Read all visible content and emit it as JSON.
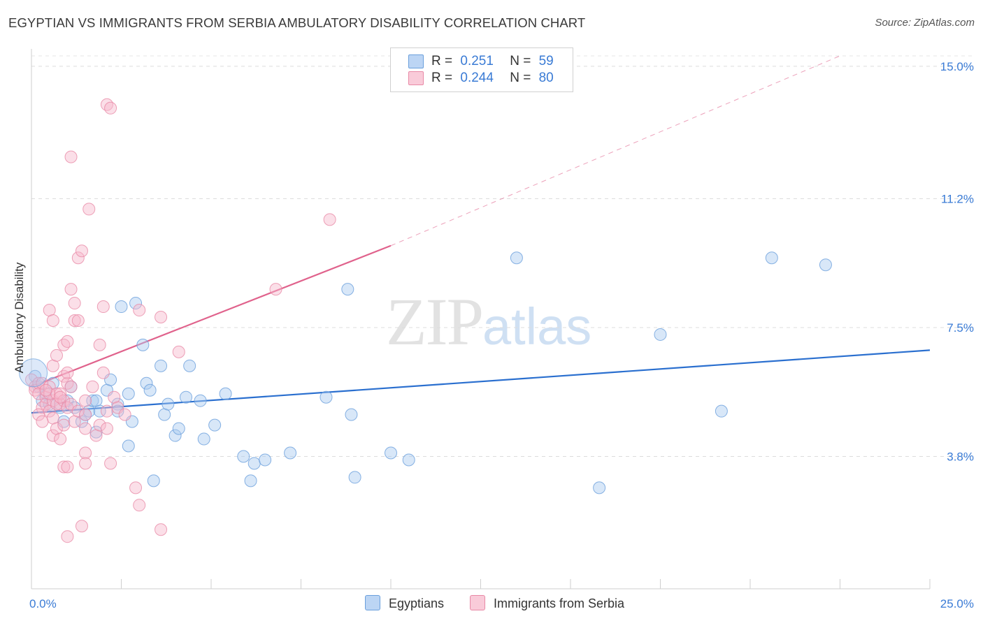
{
  "header": {
    "title": "EGYPTIAN VS IMMIGRANTS FROM SERBIA AMBULATORY DISABILITY CORRELATION CHART",
    "source": "Source: ZipAtlas.com"
  },
  "watermark": {
    "zip": "ZIP",
    "atlas": "atlas"
  },
  "legend_top": {
    "rows": [
      {
        "r_label": "R =",
        "r_value": "0.251",
        "n_label": "N =",
        "n_value": "59"
      },
      {
        "r_label": "R =",
        "r_value": "0.244",
        "n_label": "N =",
        "n_value": "80"
      }
    ]
  },
  "legend_bottom": {
    "series1": "Egyptians",
    "series2": "Immigrants from Serbia"
  },
  "colors": {
    "blue_fill": "#a9c9f0",
    "blue_stroke": "#6a9fdc",
    "blue_line": "#2a6fcf",
    "pink_fill": "#f6b8cb",
    "pink_stroke": "#e889a6",
    "pink_line": "#e0628c",
    "tick_label": "#3a7bd5"
  },
  "chart_data": {
    "type": "scatter",
    "title": "EGYPTIAN VS IMMIGRANTS FROM SERBIA AMBULATORY DISABILITY CORRELATION CHART",
    "xlabel": "",
    "ylabel": "Ambulatory Disability",
    "xlim": [
      0,
      25
    ],
    "ylim": [
      0,
      15.5
    ],
    "x_tick_labels": [
      "0.0%",
      "25.0%"
    ],
    "y_ticks": [
      3.8,
      7.5,
      11.2,
      15.0
    ],
    "y_tick_labels": [
      "3.8%",
      "7.5%",
      "11.2%",
      "15.0%"
    ],
    "grid": true,
    "legend": "top-center",
    "series": [
      {
        "name": "Egyptians",
        "r": 0.251,
        "n": 59,
        "trend": {
          "x0": 0,
          "y0": 5.05,
          "x1": 25,
          "y1": 6.85
        },
        "points": [
          [
            0.1,
            6.1
          ],
          [
            0.3,
            5.4
          ],
          [
            0.4,
            5.6
          ],
          [
            0.5,
            5.3
          ],
          [
            0.6,
            5.9
          ],
          [
            0.8,
            5.2
          ],
          [
            1.0,
            5.4
          ],
          [
            0.9,
            4.8
          ],
          [
            1.1,
            5.8
          ],
          [
            1.2,
            5.2
          ],
          [
            1.4,
            4.8
          ],
          [
            1.5,
            5.0
          ],
          [
            1.6,
            5.1
          ],
          [
            1.7,
            5.4
          ],
          [
            1.8,
            5.4
          ],
          [
            1.8,
            4.5
          ],
          [
            1.9,
            5.1
          ],
          [
            2.1,
            5.7
          ],
          [
            2.2,
            6.0
          ],
          [
            2.4,
            5.3
          ],
          [
            2.4,
            5.1
          ],
          [
            2.5,
            8.1
          ],
          [
            2.7,
            5.6
          ],
          [
            2.7,
            4.1
          ],
          [
            2.8,
            4.8
          ],
          [
            2.9,
            8.2
          ],
          [
            3.1,
            7.0
          ],
          [
            3.2,
            5.9
          ],
          [
            3.3,
            5.7
          ],
          [
            3.4,
            3.1
          ],
          [
            3.6,
            6.4
          ],
          [
            3.7,
            5.0
          ],
          [
            3.8,
            5.3
          ],
          [
            4.0,
            4.4
          ],
          [
            4.1,
            4.6
          ],
          [
            4.3,
            5.5
          ],
          [
            4.4,
            6.4
          ],
          [
            4.7,
            5.4
          ],
          [
            4.8,
            4.3
          ],
          [
            5.1,
            4.7
          ],
          [
            5.4,
            5.6
          ],
          [
            5.9,
            3.8
          ],
          [
            6.1,
            3.1
          ],
          [
            6.2,
            3.6
          ],
          [
            6.5,
            3.7
          ],
          [
            7.2,
            3.9
          ],
          [
            8.2,
            5.5
          ],
          [
            8.8,
            8.6
          ],
          [
            8.9,
            5.0
          ],
          [
            9.0,
            3.2
          ],
          [
            10.0,
            3.9
          ],
          [
            10.5,
            3.7
          ],
          [
            13.5,
            9.5
          ],
          [
            15.8,
            2.9
          ],
          [
            17.5,
            7.3
          ],
          [
            19.2,
            5.1
          ],
          [
            20.6,
            9.5
          ],
          [
            22.1,
            9.3
          ],
          [
            0.2,
            5.8
          ]
        ]
      },
      {
        "name": "Immigrants from Serbia",
        "r": 0.244,
        "n": 80,
        "trend": {
          "x0": 0,
          "y0": 5.8,
          "x1": 10.0,
          "y1": 9.85,
          "dash_to_x": 22.5,
          "dash_to_y": 15.3
        },
        "points": [
          [
            0.0,
            6.0
          ],
          [
            0.1,
            5.8
          ],
          [
            0.1,
            5.7
          ],
          [
            0.2,
            5.9
          ],
          [
            0.2,
            5.6
          ],
          [
            0.3,
            5.9
          ],
          [
            0.3,
            5.2
          ],
          [
            0.2,
            5.0
          ],
          [
            0.4,
            5.5
          ],
          [
            0.4,
            5.3
          ],
          [
            0.5,
            5.8
          ],
          [
            0.5,
            5.1
          ],
          [
            0.6,
            5.4
          ],
          [
            0.5,
            5.6
          ],
          [
            0.6,
            4.9
          ],
          [
            0.7,
            5.6
          ],
          [
            0.6,
            4.4
          ],
          [
            0.5,
            8.0
          ],
          [
            0.6,
            7.7
          ],
          [
            0.6,
            6.4
          ],
          [
            0.7,
            6.7
          ],
          [
            0.7,
            4.6
          ],
          [
            0.8,
            5.3
          ],
          [
            0.8,
            5.6
          ],
          [
            0.7,
            5.3
          ],
          [
            0.8,
            4.3
          ],
          [
            0.9,
            5.4
          ],
          [
            0.9,
            6.1
          ],
          [
            0.9,
            7.0
          ],
          [
            0.9,
            4.7
          ],
          [
            0.9,
            3.5
          ],
          [
            1.0,
            5.2
          ],
          [
            1.0,
            5.9
          ],
          [
            1.0,
            7.1
          ],
          [
            1.0,
            6.2
          ],
          [
            1.0,
            3.5
          ],
          [
            1.0,
            1.5
          ],
          [
            1.1,
            5.8
          ],
          [
            1.1,
            8.6
          ],
          [
            1.1,
            5.3
          ],
          [
            1.2,
            8.2
          ],
          [
            1.2,
            7.7
          ],
          [
            1.1,
            12.4
          ],
          [
            1.2,
            4.8
          ],
          [
            1.3,
            7.7
          ],
          [
            1.3,
            5.1
          ],
          [
            1.3,
            9.5
          ],
          [
            1.4,
            9.7
          ],
          [
            1.4,
            1.8
          ],
          [
            1.5,
            5.4
          ],
          [
            1.5,
            5.0
          ],
          [
            1.5,
            4.6
          ],
          [
            1.5,
            3.9
          ],
          [
            1.5,
            3.6
          ],
          [
            1.6,
            10.9
          ],
          [
            1.7,
            5.8
          ],
          [
            1.8,
            4.4
          ],
          [
            1.9,
            4.7
          ],
          [
            1.9,
            7.0
          ],
          [
            2.0,
            8.1
          ],
          [
            2.0,
            6.2
          ],
          [
            2.1,
            4.6
          ],
          [
            2.1,
            5.1
          ],
          [
            2.1,
            13.9
          ],
          [
            2.2,
            13.8
          ],
          [
            2.2,
            3.6
          ],
          [
            2.3,
            5.5
          ],
          [
            2.4,
            5.2
          ],
          [
            2.6,
            5.0
          ],
          [
            2.9,
            2.9
          ],
          [
            3.0,
            2.4
          ],
          [
            3.0,
            8.0
          ],
          [
            3.6,
            1.7
          ],
          [
            3.6,
            7.8
          ],
          [
            4.1,
            6.8
          ],
          [
            6.8,
            8.6
          ],
          [
            8.3,
            10.6
          ],
          [
            0.8,
            5.5
          ],
          [
            0.4,
            5.7
          ],
          [
            0.3,
            4.8
          ]
        ]
      }
    ]
  }
}
